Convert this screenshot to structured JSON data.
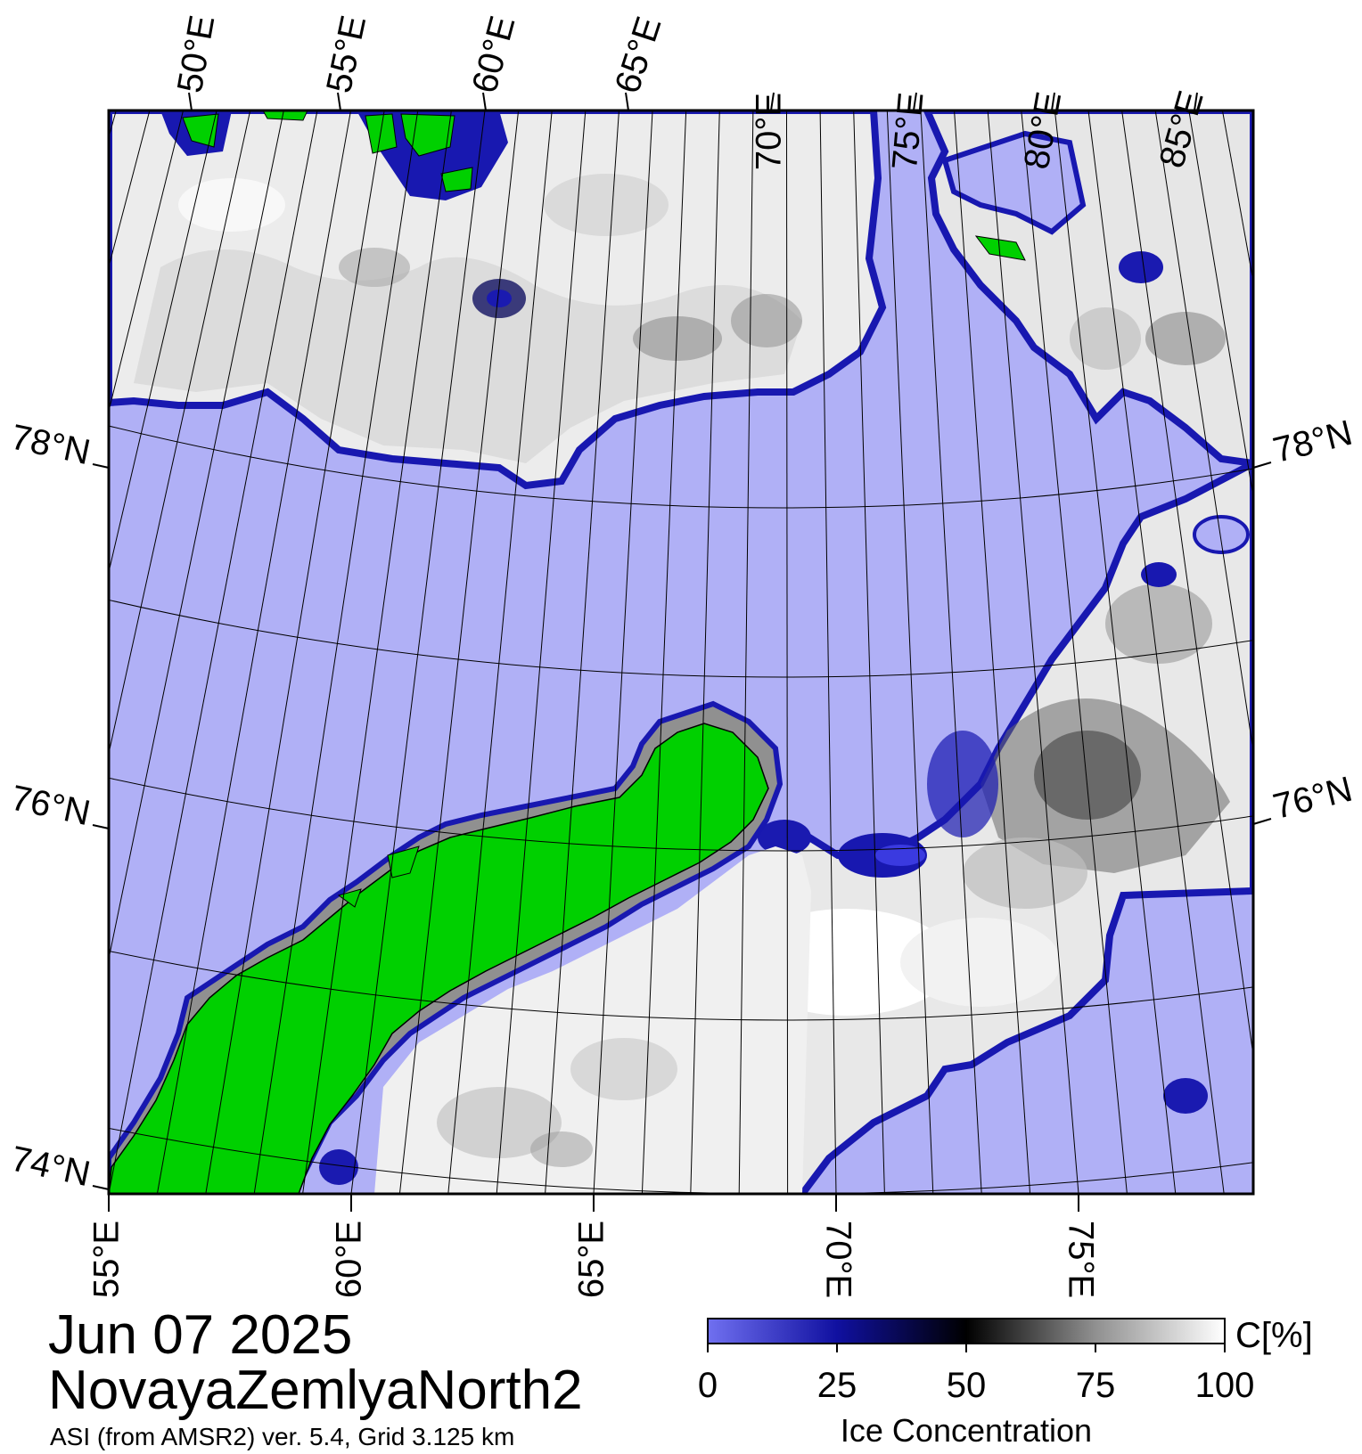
{
  "colors": {
    "water": "#b0b0f6",
    "land": "#00d000",
    "ice_high": "#ffffff",
    "ice_mid": "#7a7a7a",
    "ice_low": "#000020",
    "edge": "#2020c0",
    "coast_margin": "#909090",
    "frame": "#000000"
  },
  "map": {
    "top_longitude_labels": [
      "50°E",
      "55°E",
      "60°E",
      "65°E",
      "70°E",
      "75°E",
      "80°E",
      "85°E"
    ],
    "bottom_longitude_labels": [
      "55°E",
      "60°E",
      "65°E",
      "70°E",
      "75°E"
    ],
    "left_latitude_labels": [
      "78°N",
      "76°N",
      "74°N"
    ],
    "right_latitude_labels": [
      "78°N",
      "76°N"
    ]
  },
  "footer": {
    "date": "Jun 07 2025",
    "region": "NovayaZemlyaNorth2",
    "meta": "ASI (from AMSR2) ver. 5.4,  Grid 3.125 km"
  },
  "colorbar": {
    "unit": "C[%]",
    "title": "Ice Concentration",
    "ticks": [
      "0",
      "25",
      "50",
      "75",
      "100"
    ],
    "stops": [
      {
        "value": 0,
        "color": "#7070f0"
      },
      {
        "value": 25,
        "color": "#1010a0"
      },
      {
        "value": 50,
        "color": "#000000"
      },
      {
        "value": 75,
        "color": "#909090"
      },
      {
        "value": 100,
        "color": "#ffffff"
      }
    ]
  }
}
